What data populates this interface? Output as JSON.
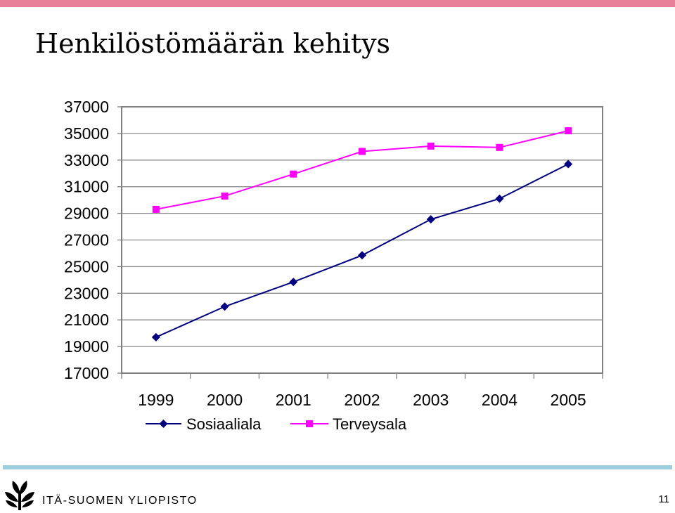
{
  "page": {
    "title": "Henkilöstömäärän kehitys",
    "page_number": "11",
    "university": "ITÄ-SUOMEN YLIOPISTO",
    "top_bar_color": "#e8809a",
    "bottom_bar_color": "#9ecfdc",
    "logo_icon": "university-logo-icon"
  },
  "chart_data": {
    "type": "line",
    "title": "",
    "xlabel": "",
    "ylabel": "",
    "categories": [
      "1999",
      "2000",
      "2001",
      "2002",
      "2003",
      "2004",
      "2005"
    ],
    "ylim": [
      17000,
      37000
    ],
    "yticks": [
      37000,
      35000,
      33000,
      31000,
      29000,
      27000,
      25000,
      23000,
      21000,
      19000,
      17000
    ],
    "grid": true,
    "legend": "bottom",
    "series": [
      {
        "name": "Sosiaaliala",
        "color": "#000080",
        "marker": "diamond",
        "values": [
          19700,
          22000,
          23850,
          25850,
          28550,
          30100,
          32700
        ]
      },
      {
        "name": "Terveysala",
        "color": "#ff00ff",
        "marker": "square",
        "values": [
          29300,
          30300,
          31950,
          33650,
          34050,
          33950,
          35200
        ]
      }
    ]
  }
}
